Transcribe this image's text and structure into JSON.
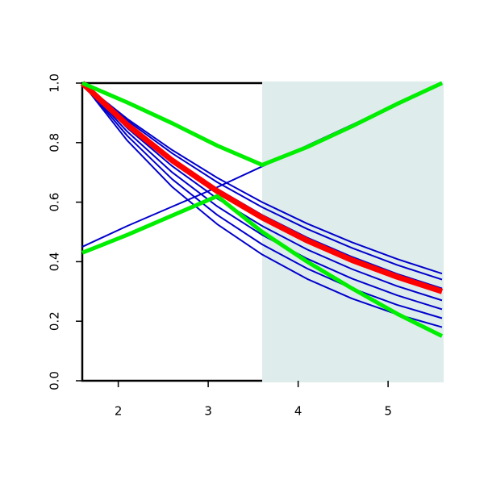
{
  "chart_data": {
    "type": "line",
    "x": [
      1.6,
      2.1,
      2.6,
      3.1,
      3.6,
      4.1,
      4.6,
      5.1,
      5.6
    ],
    "xlim": [
      1.6,
      5.6
    ],
    "xticks": [
      2,
      3,
      4,
      5
    ],
    "ylim": [
      0,
      1
    ],
    "yticks": [
      {
        "value": 0,
        "label": "0.0"
      },
      {
        "value": 0.2,
        "label": "0.2"
      },
      {
        "value": 0.4,
        "label": "0.4"
      },
      {
        "value": 0.6,
        "label": "0.6"
      },
      {
        "value": 0.8,
        "label": "0.8"
      },
      {
        "value": 1,
        "label": "1.0"
      }
    ],
    "shaded_region": {
      "xlim": [
        3.6,
        5.6
      ],
      "color": "#deeceb"
    },
    "series": [
      {
        "color": "#0000cc",
        "line_width": 2,
        "values": [
          1.0,
          0.88,
          0.775,
          0.682,
          0.6,
          0.528,
          0.465,
          0.409,
          0.36
        ]
      },
      {
        "color": "#0000cc",
        "line_width": 2,
        "values": [
          1.0,
          0.874,
          0.764,
          0.667,
          0.583,
          0.51,
          0.446,
          0.389,
          0.34
        ]
      },
      {
        "color": "#0000cc",
        "line_width": 2,
        "values": [
          1.0,
          0.864,
          0.746,
          0.645,
          0.557,
          0.481,
          0.416,
          0.359,
          0.31
        ]
      },
      {
        "color": "#0000cc",
        "line_width": 2,
        "values": [
          1.0,
          0.849,
          0.721,
          0.612,
          0.52,
          0.441,
          0.375,
          0.318,
          0.27
        ]
      },
      {
        "color": "#0000cc",
        "line_width": 2,
        "values": [
          1.0,
          0.837,
          0.7,
          0.586,
          0.49,
          0.41,
          0.343,
          0.287,
          0.24
        ]
      },
      {
        "color": "#0000cc",
        "line_width": 2,
        "values": [
          1.0,
          0.823,
          0.677,
          0.557,
          0.458,
          0.377,
          0.31,
          0.255,
          0.21
        ]
      },
      {
        "color": "#0000cc",
        "line_width": 2,
        "values": [
          1.0,
          0.807,
          0.651,
          0.526,
          0.424,
          0.342,
          0.276,
          0.223,
          0.18
        ]
      },
      {
        "color": "#0000cc",
        "line_width": 2,
        "values": [
          0.45,
          0.52,
          0.585,
          0.65,
          0.72,
          0.79,
          0.86,
          0.93,
          1.0
        ]
      },
      {
        "color": "#ff0000",
        "line_width": 7,
        "values": [
          1.0,
          0.86,
          0.74,
          0.637,
          0.548,
          0.471,
          0.405,
          0.349,
          0.3
        ]
      },
      {
        "color": "#00ee00",
        "line_width": 5,
        "values": [
          1.0,
          0.935,
          0.865,
          0.79,
          0.725,
          0.785,
          0.855,
          0.93,
          1.0
        ]
      },
      {
        "color": "#00ee00",
        "line_width": 5,
        "values": [
          0.43,
          0.49,
          0.555,
          0.62,
          0.5,
          0.4,
          0.31,
          0.225,
          0.15
        ]
      }
    ]
  }
}
